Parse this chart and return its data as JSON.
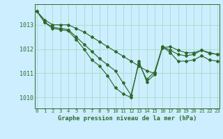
{
  "title": "Graphe pression niveau de la mer (hPa)",
  "bg_color": "#cceeff",
  "grid_color": "#aaddcc",
  "line_color": "#2d6a2d",
  "xlim": [
    -0.3,
    23.3
  ],
  "ylim": [
    1009.55,
    1013.85
  ],
  "yticks": [
    1010,
    1011,
    1012,
    1013
  ],
  "xticks": [
    0,
    1,
    2,
    3,
    4,
    5,
    6,
    7,
    8,
    9,
    10,
    11,
    12,
    13,
    14,
    15,
    16,
    17,
    18,
    19,
    20,
    21,
    22,
    23
  ],
  "series": [
    [
      1013.55,
      1013.2,
      1013.0,
      1013.0,
      1013.0,
      1012.85,
      1012.7,
      1012.5,
      1012.3,
      1012.1,
      1011.9,
      1011.7,
      1011.5,
      1011.3,
      1011.1,
      1011.0,
      1012.05,
      1012.1,
      1011.95,
      1011.85,
      1011.85,
      1011.95,
      1011.85,
      1011.78
    ],
    [
      1013.55,
      1013.1,
      1012.9,
      1012.85,
      1012.8,
      1012.5,
      1012.2,
      1011.9,
      1011.6,
      1011.35,
      1011.1,
      1010.6,
      1010.1,
      1011.4,
      1010.75,
      1011.05,
      1012.1,
      1011.95,
      1011.78,
      1011.72,
      1011.78,
      1011.95,
      1011.82,
      1011.78
    ],
    [
      1013.55,
      1013.1,
      1012.85,
      1012.8,
      1012.75,
      1012.4,
      1012.0,
      1011.55,
      1011.3,
      1010.9,
      1010.4,
      1010.15,
      1010.0,
      1011.5,
      1010.65,
      1010.95,
      1012.1,
      1011.85,
      1011.5,
      1011.5,
      1011.55,
      1011.72,
      1011.55,
      1011.5
    ]
  ]
}
